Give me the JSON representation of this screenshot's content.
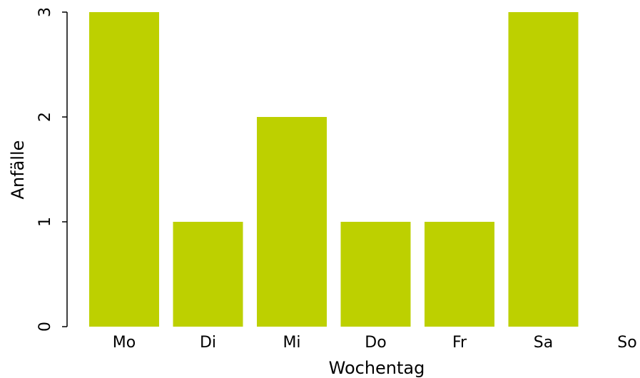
{
  "chart_data": {
    "type": "bar",
    "categories": [
      "Mo",
      "Di",
      "Mi",
      "Do",
      "Fr",
      "Sa",
      "So"
    ],
    "values": [
      3,
      1,
      2,
      1,
      1,
      3,
      0
    ],
    "title": "",
    "xlabel": "Wochentag",
    "ylabel": "Anfälle",
    "ylim": [
      0,
      3
    ],
    "yticks": [
      0,
      1,
      2,
      3
    ],
    "bar_color": "#bdd000",
    "grid": false,
    "legend": "none"
  }
}
